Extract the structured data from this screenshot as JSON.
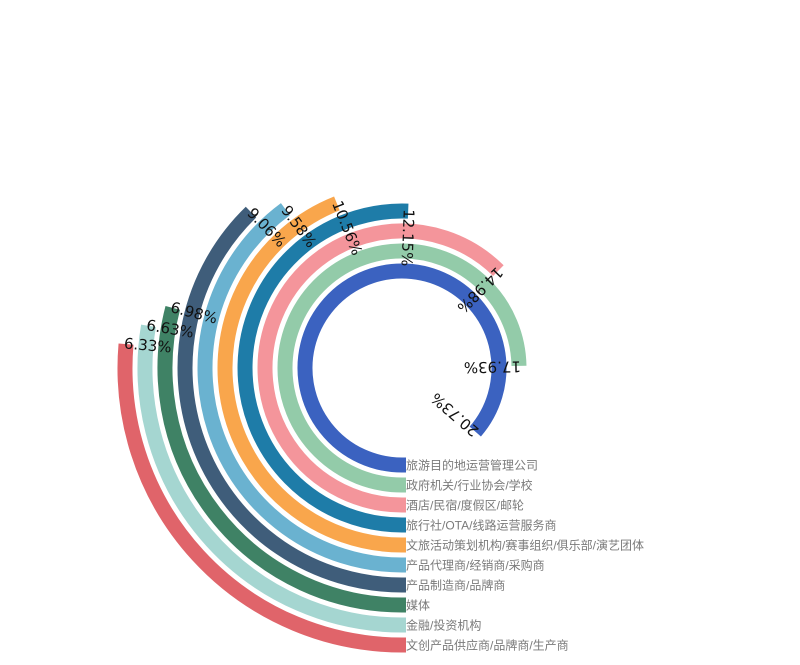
{
  "chart_data": {
    "type": "radial-bar",
    "title": "",
    "angle_max_percent": 24,
    "series": [
      {
        "category": "旅游目的地运营管理公司",
        "value": 20.73,
        "label": "20.73%",
        "color": "#3b62c0"
      },
      {
        "category": "政府机关/行业协会/学校",
        "value": 17.93,
        "label": "17.93%",
        "color": "#93cba9"
      },
      {
        "category": "酒店/民宿/度假区/邮轮",
        "value": 14.98,
        "label": "14.98%",
        "color": "#f4959b"
      },
      {
        "category": "旅行社/OTA/线路运营服务商",
        "value": 12.15,
        "label": "12.15%",
        "color": "#1e7ca8"
      },
      {
        "category": "文旅活动策划机构/赛事组织/俱乐部/演艺团体",
        "value": 10.56,
        "label": "10.56%",
        "color": "#f9a64c"
      },
      {
        "category": "产品代理商/经销商/采购商",
        "value": 9.58,
        "label": "9.58%",
        "color": "#6ab2d0"
      },
      {
        "category": "产品制造商/品牌商",
        "value": 9.06,
        "label": "9.06%",
        "color": "#3f5d7a"
      },
      {
        "category": "媒体",
        "value": 6.98,
        "label": "6.98%",
        "color": "#3f8265"
      },
      {
        "category": "金融/投资机构",
        "value": 6.63,
        "label": "6.63%",
        "color": "#a5d6d1"
      },
      {
        "category": "文创产品供应商/品牌商/生产商",
        "value": 6.33,
        "label": "6.33%",
        "color": "#e0646a"
      }
    ]
  }
}
